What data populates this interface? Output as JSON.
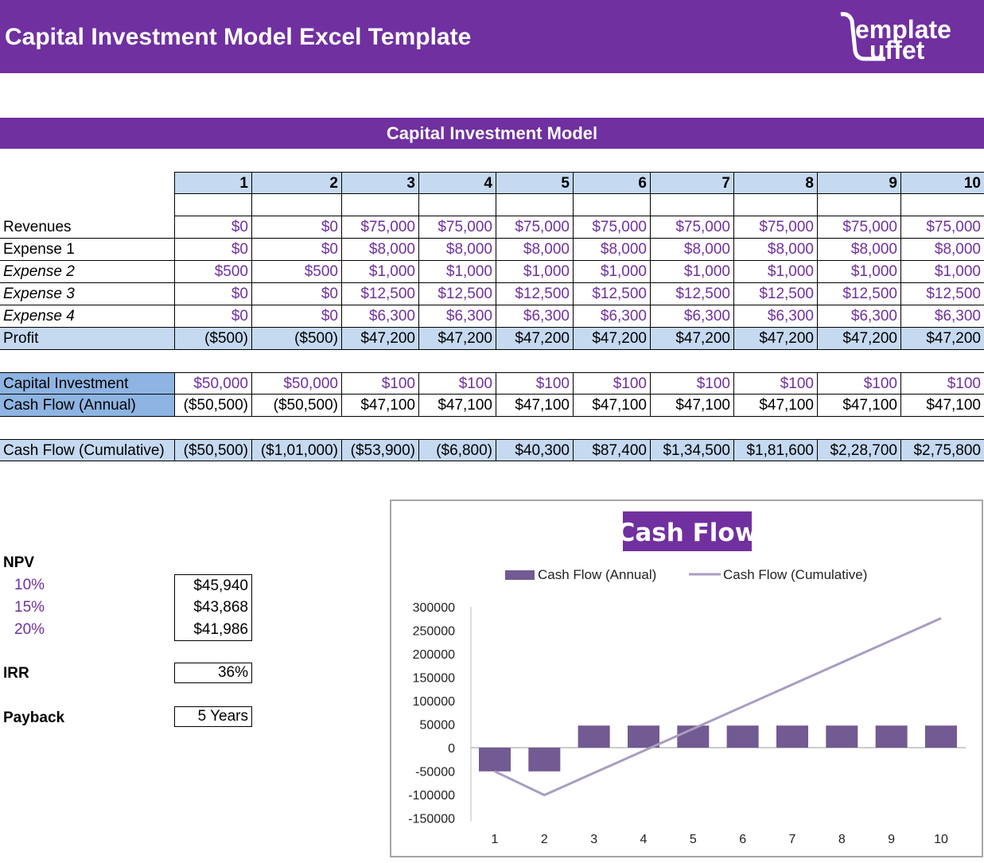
{
  "banner": {
    "title": "Capital Investment Model Excel Template",
    "logo": "emplate uffet",
    "color": "#7030A0"
  },
  "section_title": "Capital Investment Model",
  "periods": [
    "1",
    "2",
    "3",
    "4",
    "5",
    "6",
    "7",
    "8",
    "9",
    "10"
  ],
  "rows": [
    {
      "label": "Revenues",
      "italic": false,
      "values": [
        "$0",
        "$0",
        "$75,000",
        "$75,000",
        "$75,000",
        "$75,000",
        "$75,000",
        "$75,000",
        "$75,000",
        "$75,000"
      ]
    },
    {
      "label": "Expense 1",
      "italic": false,
      "values": [
        "$0",
        "$0",
        "$8,000",
        "$8,000",
        "$8,000",
        "$8,000",
        "$8,000",
        "$8,000",
        "$8,000",
        "$8,000"
      ]
    },
    {
      "label": "Expense 2",
      "italic": true,
      "values": [
        "$500",
        "$500",
        "$1,000",
        "$1,000",
        "$1,000",
        "$1,000",
        "$1,000",
        "$1,000",
        "$1,000",
        "$1,000"
      ]
    },
    {
      "label": "Expense 3",
      "italic": true,
      "values": [
        "$0",
        "$0",
        "$12,500",
        "$12,500",
        "$12,500",
        "$12,500",
        "$12,500",
        "$12,500",
        "$12,500",
        "$12,500"
      ]
    },
    {
      "label": "Expense 4",
      "italic": true,
      "values": [
        "$0",
        "$0",
        "$6,300",
        "$6,300",
        "$6,300",
        "$6,300",
        "$6,300",
        "$6,300",
        "$6,300",
        "$6,300"
      ]
    },
    {
      "label": "Profit",
      "values": [
        "($500)",
        "($500)",
        "$47,200",
        "$47,200",
        "$47,200",
        "$47,200",
        "$47,200",
        "$47,200",
        "$47,200",
        "$47,200"
      ]
    },
    {
      "label": "Capital Investment",
      "values": [
        "$50,000",
        "$50,000",
        "$100",
        "$100",
        "$100",
        "$100",
        "$100",
        "$100",
        "$100",
        "$100"
      ]
    },
    {
      "label": "Cash Flow (Annual)",
      "values": [
        "($50,500)",
        "($50,500)",
        "$47,100",
        "$47,100",
        "$47,100",
        "$47,100",
        "$47,100",
        "$47,100",
        "$47,100",
        "$47,100"
      ]
    },
    {
      "label": "Cash Flow (Cumulative)",
      "values": [
        "($50,500)",
        "($1,01,000)",
        "($53,900)",
        "($6,800)",
        "$40,300",
        "$87,400",
        "$1,34,500",
        "$1,81,600",
        "$2,28,700",
        "$2,75,800"
      ]
    }
  ],
  "npv": {
    "label": "NPV",
    "rates": [
      {
        "rate": "10%",
        "value": "$45,940"
      },
      {
        "rate": "15%",
        "value": "$43,868"
      },
      {
        "rate": "20%",
        "value": "$41,986"
      }
    ]
  },
  "irr": {
    "label": "IRR",
    "value": "36%"
  },
  "payback": {
    "label": "Payback",
    "value": "5 Years"
  },
  "chart_data": {
    "type": "bar+line",
    "title": "Cash Flow",
    "legend": "top",
    "categories": [
      "1",
      "2",
      "3",
      "4",
      "5",
      "6",
      "7",
      "8",
      "9",
      "10"
    ],
    "ylim": [
      -150000,
      300000
    ],
    "yticks": [
      "300000",
      "250000",
      "200000",
      "150000",
      "100000",
      "50000",
      "0",
      "-50000",
      "-100000",
      "-150000"
    ],
    "grid": false,
    "series": [
      {
        "name": "Cash Flow (Annual)",
        "type": "bar",
        "color": "#725A92",
        "values": [
          -50500,
          -50500,
          47100,
          47100,
          47100,
          47100,
          47100,
          47100,
          47100,
          47100
        ]
      },
      {
        "name": "Cash Flow (Cumulative)",
        "type": "line",
        "color": "#A99DC0",
        "values": [
          -50500,
          -101000,
          -53900,
          -6800,
          40300,
          87400,
          134500,
          181600,
          228700,
          275800
        ]
      }
    ]
  }
}
